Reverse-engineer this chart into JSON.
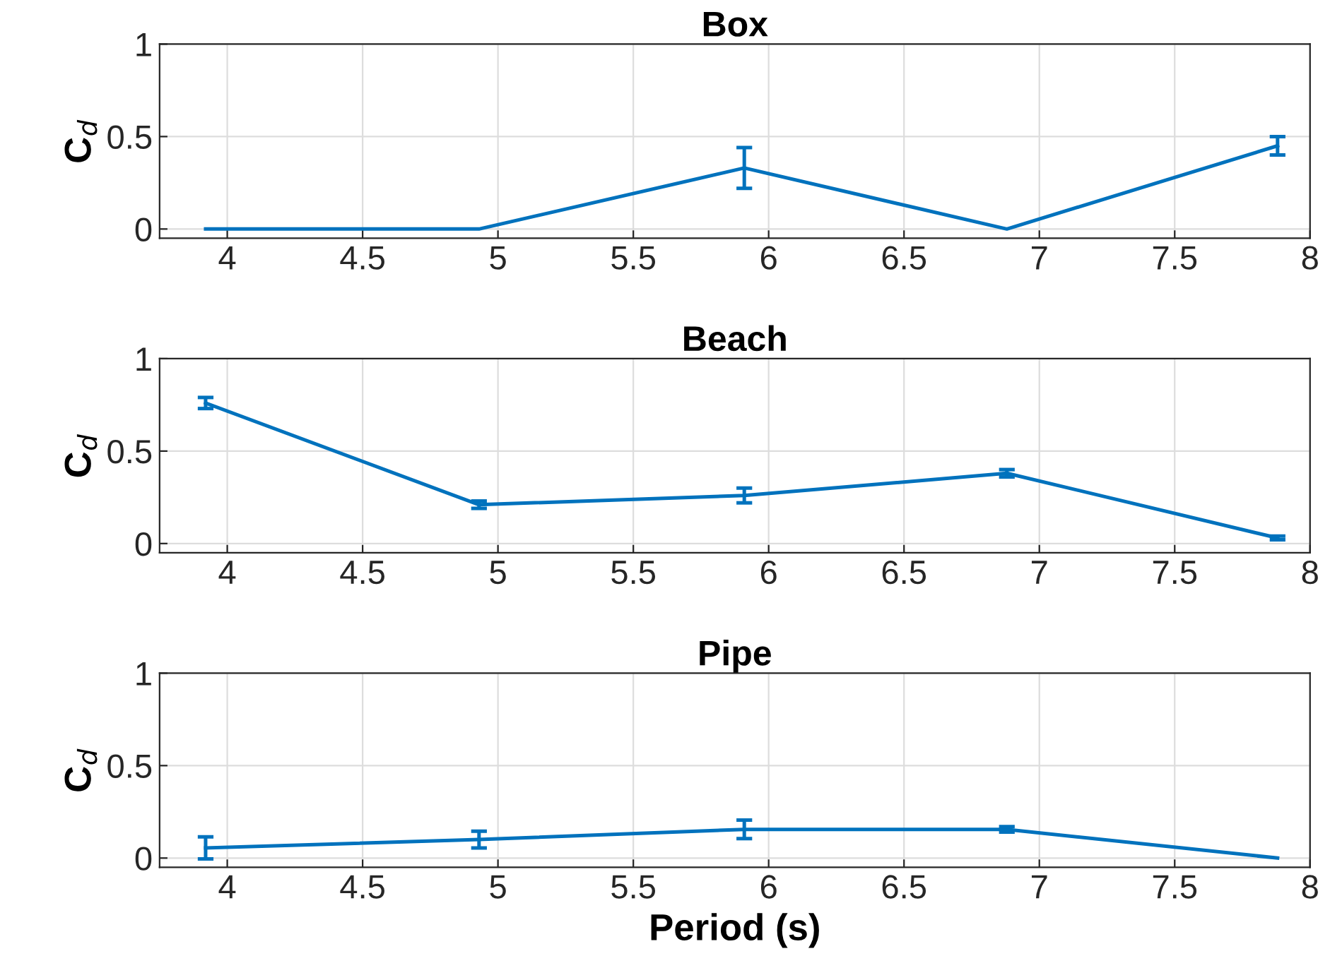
{
  "chart_data": [
    {
      "type": "line",
      "title": "Box",
      "ylabel": "C$_{d}$",
      "x": [
        3.92,
        4.93,
        5.91,
        6.88,
        7.88
      ],
      "values": [
        0,
        0,
        0.33,
        0,
        0.45
      ],
      "errors": [
        null,
        null,
        0.11,
        null,
        0.05
      ],
      "color": "#0072bd",
      "xlim": [
        3.75,
        8
      ],
      "xticks": [
        4,
        4.5,
        5,
        5.5,
        6,
        6.5,
        7,
        7.5,
        8
      ],
      "ylim": [
        -0.05,
        1
      ],
      "yticks": [
        0,
        0.5,
        1
      ],
      "grid": true
    },
    {
      "type": "line",
      "title": "Beach",
      "ylabel": "C$_{d}$",
      "x": [
        3.92,
        4.93,
        5.91,
        6.88,
        7.88
      ],
      "values": [
        0.76,
        0.21,
        0.26,
        0.38,
        0.03
      ],
      "errors": [
        0.03,
        0.02,
        0.04,
        0.02,
        0.01
      ],
      "color": "#0072bd",
      "xlim": [
        3.75,
        8
      ],
      "xticks": [
        4,
        4.5,
        5,
        5.5,
        6,
        6.5,
        7,
        7.5,
        8
      ],
      "ylim": [
        -0.05,
        1
      ],
      "yticks": [
        0,
        0.5,
        1
      ],
      "grid": true
    },
    {
      "type": "line",
      "title": "Pipe",
      "ylabel": "C$_{d}$",
      "xlabel": "Period (s)",
      "x": [
        3.92,
        4.93,
        5.91,
        6.88,
        7.88
      ],
      "values": [
        0.055,
        0.1,
        0.155,
        0.155,
        0
      ],
      "errors": [
        0.06,
        0.045,
        0.05,
        0.015,
        null
      ],
      "color": "#0072bd",
      "xlim": [
        3.75,
        8
      ],
      "xticks": [
        4,
        4.5,
        5,
        5.5,
        6,
        6.5,
        7,
        7.5,
        8
      ],
      "ylim": [
        -0.05,
        1
      ],
      "yticks": [
        0,
        0.5,
        1
      ],
      "grid": true
    }
  ]
}
